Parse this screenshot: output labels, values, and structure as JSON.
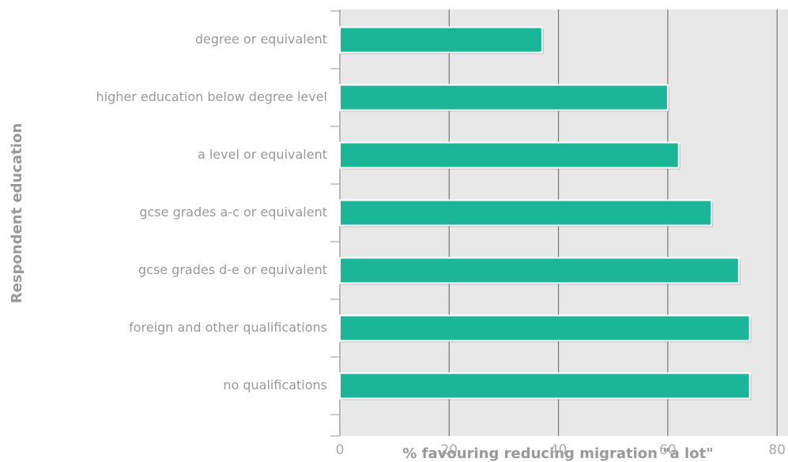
{
  "chart_data": {
    "type": "bar",
    "orientation": "horizontal",
    "categories": [
      "degree or equivalent",
      "higher education below degree level",
      "a level or equivalent",
      "gcse grades a-c or equivalent",
      "gcse grades d-e or equivalent",
      "foreign and other qualifications",
      "no qualifications"
    ],
    "values": [
      37,
      60,
      62,
      68,
      73,
      75,
      75
    ],
    "color": "#1bb697",
    "xlim": [
      0,
      82
    ],
    "xticks": [
      0,
      20,
      40,
      60,
      80
    ],
    "xlabel": "% favouring reducing migration \"a lot\"",
    "ylabel": "Respondent education",
    "grid": true
  }
}
